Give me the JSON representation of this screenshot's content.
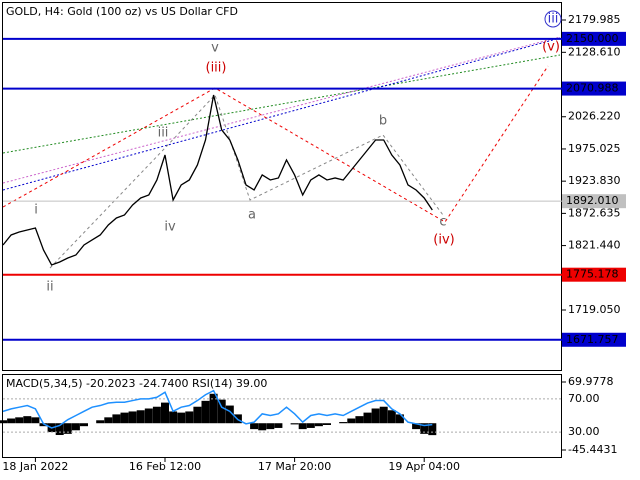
{
  "chart_data": {
    "type": "line",
    "title": "GOLD, H4:  Gold (100 oz) vs US Dollar CFD",
    "categories": [
      null,
      null,
      null,
      null,
      "18 Jan 2022",
      null,
      null,
      null,
      null,
      null,
      null,
      null,
      null,
      null,
      null,
      null,
      null,
      null,
      null,
      null,
      "16 Feb 12:00",
      null,
      null,
      null,
      null,
      null,
      null,
      null,
      null,
      null,
      null,
      null,
      null,
      null,
      null,
      null,
      "17 Mar 20:00",
      null,
      null,
      null,
      null,
      null,
      null,
      null,
      null,
      null,
      null,
      null,
      null,
      null,
      null,
      null,
      "19 Apr 04:00",
      null
    ],
    "values": [
      1822.4,
      1838.3,
      1843.1,
      1846.2,
      1849.4,
      1814.5,
      1790.6,
      1795.4,
      1801.7,
      1806.5,
      1822.4,
      1830.4,
      1838.3,
      1854.2,
      1865.3,
      1870.1,
      1886.0,
      1897.1,
      1901.9,
      1925.7,
      1965.4,
      1893.9,
      1917.8,
      1925.7,
      1949.6,
      1989.3,
      2060.8,
      2005.2,
      1989.3,
      1957.5,
      1917.8,
      1909.8,
      1933.7,
      1925.7,
      1928.9,
      1957.5,
      1933.7,
      1901.9,
      1925.7,
      1933.7,
      1925.7,
      1928.9,
      1925.7,
      1941.6,
      1957.5,
      1973.4,
      1989.3,
      1989.3,
      1965.4,
      1949.6,
      1917.8,
      1909.8,
      1897.1,
      1878.0
    ],
    "color": "#000000",
    "ylim": [
      1623.7,
      2205.4
    ],
    "yticks": [
      2179.985,
      {
        "value": 2128.61,
        "label": "2128.610"
      },
      {
        "value": 2026.22,
        "label": "2026.220"
      },
      1975.025,
      {
        "value": 1923.83,
        "label": "1923.830"
      },
      1872.635,
      {
        "value": 1821.44,
        "label": "1821.440"
      },
      {
        "value": 1719.05,
        "label": "1719.050"
      }
    ],
    "levels": [
      {
        "value": 2150,
        "label": "2150.000",
        "color": "#0000cc"
      },
      {
        "value": 2070.988,
        "label": "2070.988",
        "color": "#0000cc"
      },
      {
        "value": 1892.01,
        "label": "1892.010",
        "color": "#c0c0c0"
      },
      {
        "value": 1775.178,
        "label": "1775.178",
        "color": "#ee0000"
      },
      {
        "value": 1671.757,
        "label": "1671.757",
        "color": "#0000cc"
      }
    ],
    "wave_labels": [
      {
        "text": "i",
        "color": "#666666"
      },
      {
        "text": "ii",
        "color": "#666666"
      },
      {
        "text": "iii",
        "color": "#666666"
      },
      {
        "text": "iv",
        "color": "#666666"
      },
      {
        "text": "v",
        "color": "#666666"
      },
      {
        "text": "a",
        "color": "#666666"
      },
      {
        "text": "b",
        "color": "#666666"
      },
      {
        "text": "c",
        "color": "#666666"
      },
      {
        "text": "(iii)",
        "color": "#cc0000"
      },
      {
        "text": "(iv)",
        "color": "#cc0000"
      },
      {
        "text": "(v)",
        "color": "#cc0000"
      },
      {
        "text": "iii",
        "color": "#3333cc"
      }
    ],
    "indicator": {
      "label": "MACD(5,34,5) -20.2023 -24.7400 RSI(14) 39.00",
      "macd": {
        "color": "#000000",
        "ylim": [
          -45.4431,
          69.9778
        ],
        "yticks": [
          69.9778,
          -45.4431
        ],
        "values": [
          5,
          8,
          10,
          12,
          10,
          -5,
          -15,
          -20,
          -18,
          -12,
          -5,
          0,
          5,
          10,
          15,
          18,
          20,
          22,
          25,
          28,
          35,
          20,
          18,
          20,
          28,
          38,
          50,
          40,
          30,
          15,
          0,
          -10,
          -12,
          -10,
          -8,
          0,
          -2,
          -10,
          -8,
          -5,
          -3,
          0,
          2,
          8,
          12,
          18,
          25,
          28,
          22,
          15,
          0,
          -10,
          -18,
          -20.2
        ]
      },
      "rsi": {
        "color": "#1e90ff",
        "ylim": [
          0,
          100
        ],
        "yticks": [
          {
            "value": 70,
            "label": "70.00"
          },
          {
            "value": 30,
            "label": "30.00"
          }
        ],
        "values": [
          55,
          58,
          60,
          62,
          58,
          40,
          35,
          38,
          45,
          50,
          55,
          60,
          62,
          65,
          66,
          66,
          68,
          70,
          70,
          72,
          78,
          55,
          60,
          62,
          68,
          75,
          80,
          60,
          55,
          45,
          40,
          42,
          52,
          50,
          52,
          60,
          52,
          42,
          50,
          52,
          50,
          52,
          50,
          55,
          60,
          65,
          68,
          68,
          58,
          52,
          42,
          40,
          38,
          39
        ]
      }
    }
  }
}
